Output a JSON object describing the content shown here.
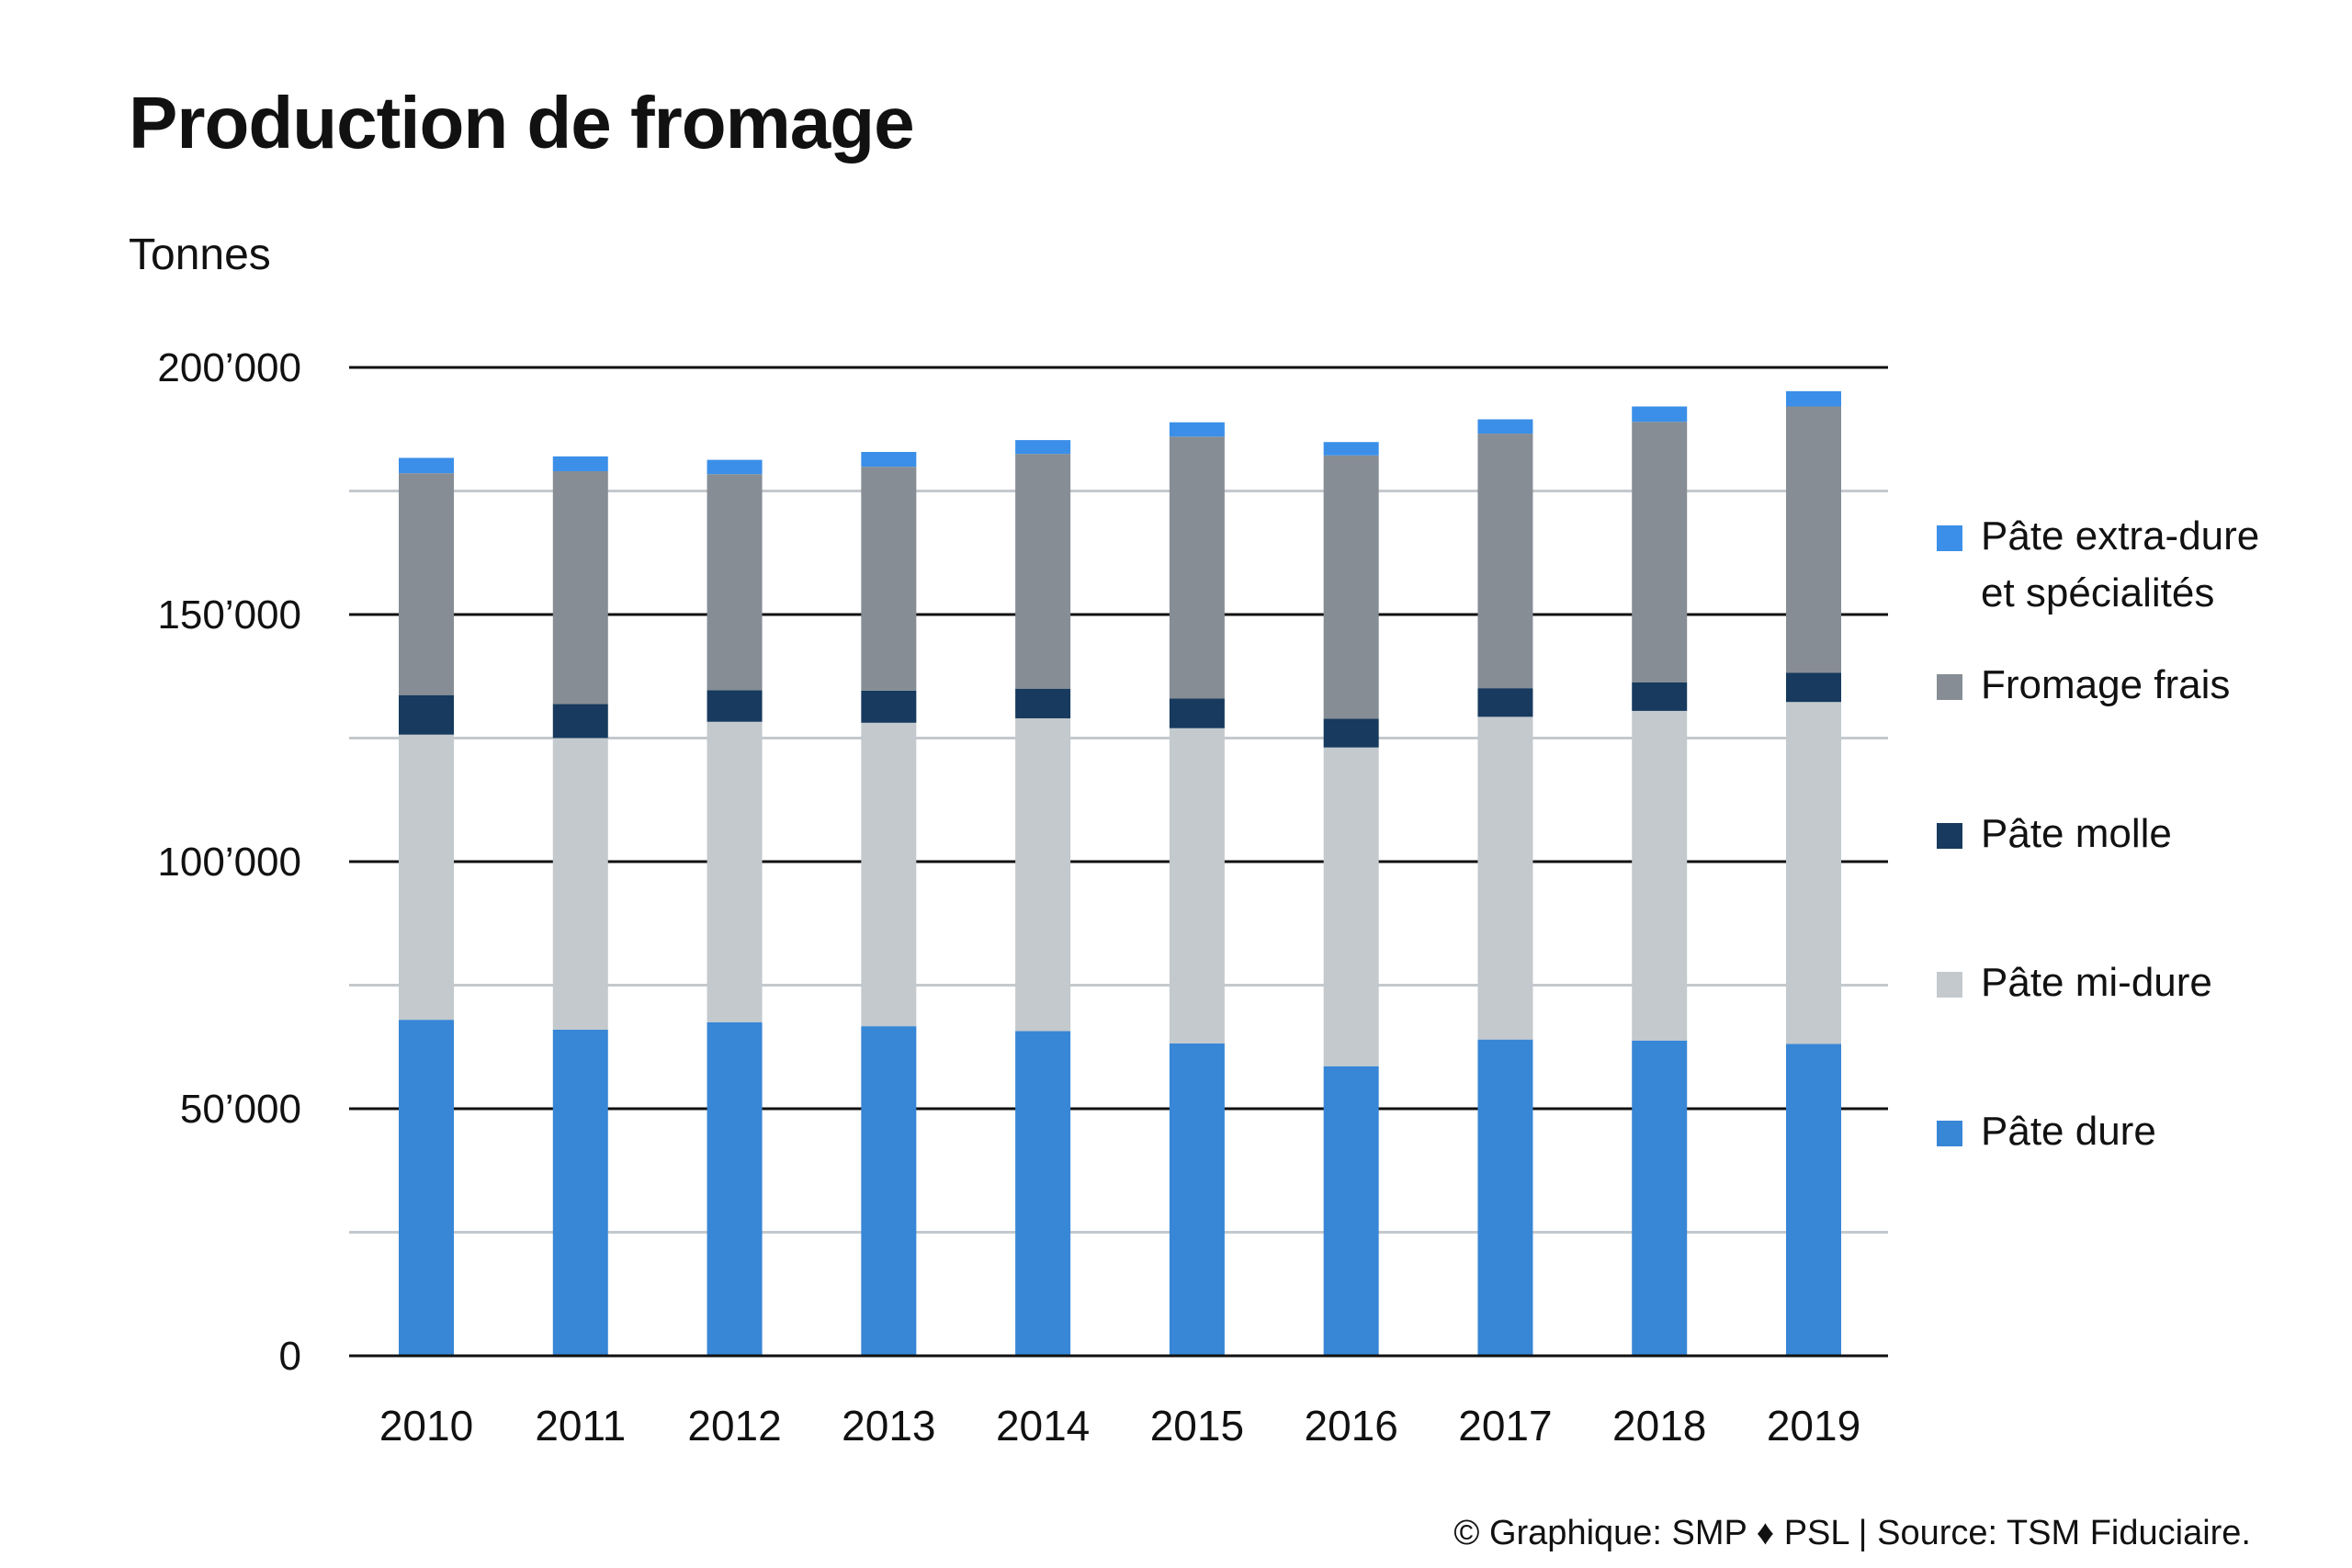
{
  "header": {
    "title": "Production de fromage",
    "unit_label": "Tonnes"
  },
  "credit": "© Graphique: SMP ♦ PSL | Source: TSM Fiduciaire.",
  "chart_data": {
    "type": "bar",
    "stacked": true,
    "title": "Production de fromage",
    "ylabel": "Tonnes",
    "xlabel": "",
    "ylim": [
      0,
      200000
    ],
    "yticks": [
      0,
      50000,
      100000,
      150000,
      200000
    ],
    "ytick_labels": [
      "0",
      "50’000",
      "100’000",
      "150’000",
      "200’000"
    ],
    "grid": "horizontal",
    "legend_position": "right",
    "categories": [
      "2010",
      "2011",
      "2012",
      "2013",
      "2014",
      "2015",
      "2016",
      "2017",
      "2018",
      "2019"
    ],
    "series": [
      {
        "name": "Pâte dure",
        "color": "#3886d6",
        "values": [
          68000,
          66000,
          67500,
          66700,
          65700,
          63200,
          58600,
          64000,
          63800,
          63100
        ]
      },
      {
        "name": "Pâte mi-dure",
        "color": "#c3c9cd",
        "values": [
          57700,
          59000,
          60800,
          61400,
          63300,
          63800,
          64500,
          65300,
          66700,
          69200
        ]
      },
      {
        "name": "Pâte molle",
        "color": "#173a5e",
        "values": [
          8000,
          6900,
          6400,
          6500,
          6000,
          6000,
          5800,
          5800,
          5800,
          5900
        ]
      },
      {
        "name": "Fromage frais",
        "color": "#868d94",
        "values": [
          44900,
          47100,
          43700,
          45300,
          47500,
          53000,
          53300,
          51500,
          52700,
          53900
        ]
      },
      {
        "name": "Pâte extra-dure et spécialités",
        "color": "#3b8fe8",
        "legend_lines": [
          "Pâte extra-dure",
          "et spécialités"
        ],
        "values": [
          3100,
          3000,
          2900,
          3000,
          2800,
          2900,
          2700,
          2900,
          3100,
          3100
        ]
      }
    ]
  }
}
